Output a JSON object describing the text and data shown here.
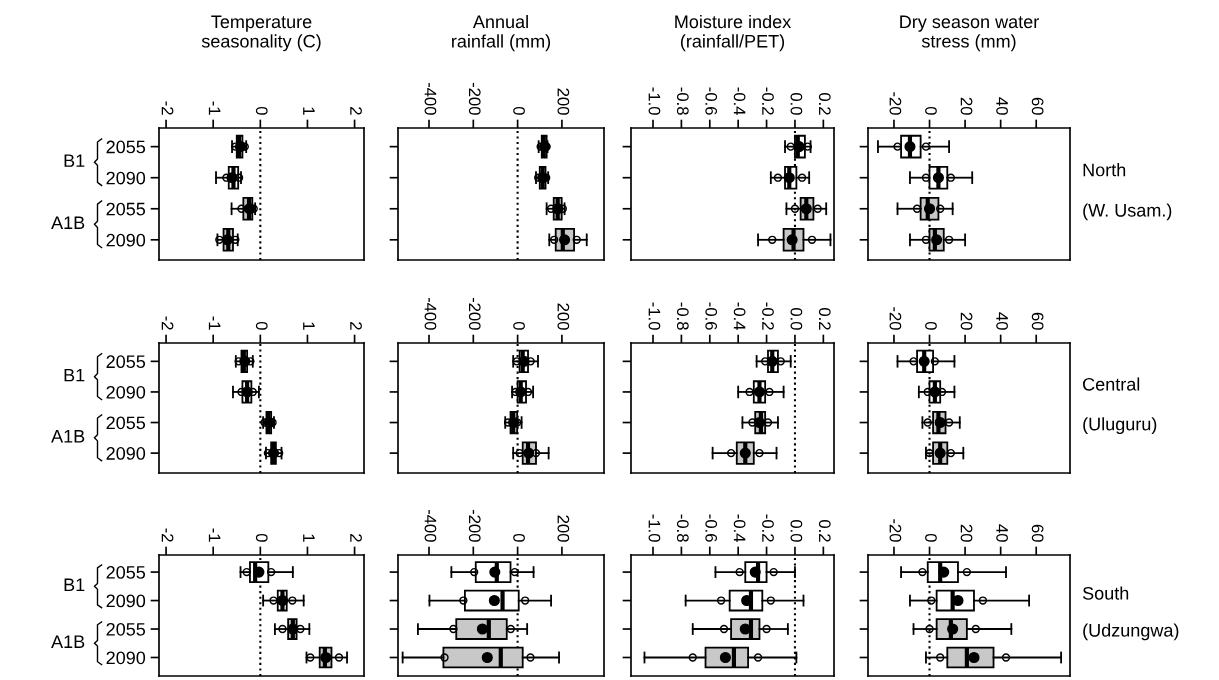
{
  "chart_data": [
    {
      "type": "box",
      "orientation": "horizontal",
      "title": "Temperature\nseasonality (C)",
      "categories": [
        "2055",
        "2090",
        "2055",
        "2090"
      ],
      "xlim": [
        -2.15,
        2.2
      ],
      "xticks": [
        -2,
        -1,
        0,
        1,
        2
      ],
      "colors": [
        "#ffffff",
        "#ffffff",
        "#c8c8c8",
        "#c8c8c8"
      ],
      "ref_lines": [
        {
          "axis": "x",
          "value": 0,
          "line_style": "dotted"
        }
      ],
      "annotations": [
        "B1",
        "A1B"
      ],
      "boxes": [
        {
          "low": -0.6,
          "q1": -0.5,
          "median": -0.45,
          "q3": -0.38,
          "high": -0.3,
          "mean": -0.42,
          "outliers": [
            -0.53,
            -0.33
          ]
        },
        {
          "low": -0.94,
          "q1": -0.67,
          "median": -0.57,
          "q3": -0.47,
          "high": -0.41,
          "mean": -0.6,
          "outliers": [
            -0.72,
            -0.45
          ]
        },
        {
          "low": -0.61,
          "q1": -0.36,
          "median": -0.24,
          "q3": -0.17,
          "high": -0.11,
          "mean": -0.23,
          "outliers": [
            -0.4,
            -0.14
          ]
        },
        {
          "low": -0.91,
          "q1": -0.78,
          "median": -0.68,
          "q3": -0.58,
          "high": -0.48,
          "mean": -0.7,
          "outliers": [
            -0.87,
            -0.53
          ]
        }
      ]
    },
    {
      "type": "box",
      "orientation": "horizontal",
      "title": "Annual\nrainfall (mm)",
      "categories": [
        "2055",
        "2090",
        "2055",
        "2090"
      ],
      "xlim": [
        -540,
        390
      ],
      "xticks": [
        -400,
        -200,
        0,
        200
      ],
      "colors": [
        "#ffffff",
        "#ffffff",
        "#c8c8c8",
        "#c8c8c8"
      ],
      "ref_lines": [
        {
          "axis": "x",
          "value": 0,
          "line_style": "dotted"
        }
      ],
      "tick_labels": "x",
      "boxes": [
        {
          "low": 95,
          "q1": 109,
          "median": 118,
          "q3": 131,
          "high": 135,
          "mean": 122,
          "outliers": [
            104,
            131
          ]
        },
        {
          "low": 83,
          "q1": 100,
          "median": 113,
          "q3": 126,
          "high": 138,
          "mean": 113,
          "outliers": [
            93,
            129
          ]
        },
        {
          "low": 131,
          "q1": 163,
          "median": 181,
          "q3": 199,
          "high": 212,
          "mean": 181,
          "outliers": [
            151,
            204
          ]
        },
        {
          "low": 143,
          "q1": 172,
          "median": 204,
          "q3": 255,
          "high": 312,
          "mean": 212,
          "outliers": [
            165,
            267
          ]
        }
      ]
    },
    {
      "type": "box",
      "orientation": "horizontal",
      "title": "Moisture index\n(rainfall/PET)",
      "categories": [
        "2055",
        "2090",
        "2055",
        "2090"
      ],
      "xlim": [
        -1.155,
        0.275
      ],
      "xticks": [
        {
          "value": -1.0,
          "label": "-1.0"
        },
        {
          "value": -0.8,
          "label": "-0.8"
        },
        {
          "value": -0.6,
          "label": "-0.6"
        },
        {
          "value": -0.4,
          "label": "-0.4"
        },
        {
          "value": -0.2,
          "label": "-0.2"
        },
        {
          "value": 0.0,
          "label": "0.0"
        },
        {
          "value": 0.2,
          "label": "0.2"
        }
      ],
      "colors": [
        "#ffffff",
        "#ffffff",
        "#c8c8c8",
        "#c8c8c8"
      ],
      "ref_lines": [
        {
          "axis": "x",
          "value": 0,
          "line_style": "dotted"
        }
      ],
      "tick_labels": "x",
      "boxes": [
        {
          "low": -0.07,
          "q1": 0.0,
          "median": 0.02,
          "q3": 0.07,
          "high": 0.11,
          "mean": 0.03,
          "outliers": [
            -0.03,
            0.09
          ]
        },
        {
          "low": -0.17,
          "q1": -0.07,
          "median": -0.04,
          "q3": 0.01,
          "high": 0.1,
          "mean": -0.04,
          "outliers": [
            -0.12,
            0.05
          ]
        },
        {
          "low": -0.06,
          "q1": 0.04,
          "median": 0.08,
          "q3": 0.13,
          "high": 0.22,
          "mean": 0.08,
          "outliers": [
            0.0,
            0.16
          ]
        },
        {
          "low": -0.26,
          "q1": -0.08,
          "median": -0.01,
          "q3": 0.06,
          "high": 0.25,
          "mean": -0.02,
          "outliers": [
            -0.16,
            0.12
          ]
        }
      ]
    },
    {
      "type": "box",
      "orientation": "horizontal",
      "title": "Dry season water\nstress (mm)",
      "categories": [
        "2055",
        "2090",
        "2055",
        "2090"
      ],
      "xlim": [
        -34.6,
        79
      ],
      "xticks": [
        -20,
        0,
        20,
        40,
        60
      ],
      "colors": [
        "#ffffff",
        "#ffffff",
        "#c8c8c8",
        "#c8c8c8"
      ],
      "ref_lines": [
        {
          "axis": "x",
          "value": 0,
          "line_style": "dotted"
        }
      ],
      "tick_labels": "x",
      "annotations": [
        "North",
        "(W. Usam.)"
      ],
      "boxes": [
        {
          "low": -29,
          "q1": -16,
          "median": -11,
          "q3": -5,
          "high": 11,
          "mean": -11,
          "outliers": [
            -18,
            -2
          ]
        },
        {
          "low": -11,
          "q1": 0,
          "median": 5,
          "q3": 10,
          "high": 24,
          "mean": 5,
          "outliers": [
            -2,
            12
          ]
        },
        {
          "low": -18,
          "q1": -5,
          "median": -1,
          "q3": 5,
          "high": 13,
          "mean": 0,
          "outliers": [
            -7,
            6
          ]
        },
        {
          "low": -11,
          "q1": 0,
          "median": 3,
          "q3": 8,
          "high": 20,
          "mean": 4,
          "outliers": [
            -2,
            11
          ]
        }
      ]
    },
    {
      "type": "box",
      "orientation": "horizontal",
      "categories": [
        "2055",
        "2090",
        "2055",
        "2090"
      ],
      "xlim": [
        -2.15,
        2.2
      ],
      "xticks": [
        -2,
        -1,
        0,
        1,
        2
      ],
      "colors": [
        "#ffffff",
        "#ffffff",
        "#c8c8c8",
        "#c8c8c8"
      ],
      "ref_lines": [
        {
          "axis": "x",
          "value": 0,
          "line_style": "dotted"
        }
      ],
      "annotations": [
        "B1",
        "A1B"
      ],
      "boxes": [
        {
          "low": -0.52,
          "q1": -0.4,
          "median": -0.35,
          "q3": -0.28,
          "high": -0.16,
          "mean": -0.33,
          "outliers": [
            -0.46,
            -0.21
          ]
        },
        {
          "low": -0.58,
          "q1": -0.38,
          "median": -0.28,
          "q3": -0.19,
          "high": -0.03,
          "mean": -0.28,
          "outliers": [
            -0.4,
            -0.16
          ]
        },
        {
          "low": 0.06,
          "q1": 0.13,
          "median": 0.17,
          "q3": 0.23,
          "high": 0.29,
          "mean": 0.19,
          "outliers": [
            0.09,
            0.26
          ]
        },
        {
          "low": 0.12,
          "q1": 0.23,
          "median": 0.28,
          "q3": 0.33,
          "high": 0.45,
          "mean": 0.28,
          "outliers": [
            0.16,
            0.4
          ]
        }
      ]
    },
    {
      "type": "box",
      "orientation": "horizontal",
      "categories": [
        "2055",
        "2090",
        "2055",
        "2090"
      ],
      "xlim": [
        -540,
        390
      ],
      "xticks": [
        -400,
        -200,
        0,
        200
      ],
      "colors": [
        "#ffffff",
        "#ffffff",
        "#c8c8c8",
        "#c8c8c8"
      ],
      "ref_lines": [
        {
          "axis": "x",
          "value": 0,
          "line_style": "dotted"
        }
      ],
      "tick_labels": "x",
      "boxes": [
        {
          "low": -20,
          "q1": 9,
          "median": 23,
          "q3": 47,
          "high": 92,
          "mean": 29,
          "outliers": [
            -4,
            59
          ]
        },
        {
          "low": -25,
          "q1": 0,
          "median": 14,
          "q3": 38,
          "high": 70,
          "mean": 14,
          "outliers": [
            -9,
            47
          ]
        },
        {
          "low": -56,
          "q1": -32,
          "median": -20,
          "q3": -2,
          "high": 18,
          "mean": -18,
          "outliers": [
            -43,
            -2
          ]
        },
        {
          "low": -20,
          "q1": 23,
          "median": 47,
          "q3": 83,
          "high": 140,
          "mean": 50,
          "outliers": [
            9,
            83
          ]
        }
      ]
    },
    {
      "type": "box",
      "orientation": "horizontal",
      "categories": [
        "2055",
        "2090",
        "2055",
        "2090"
      ],
      "xlim": [
        -1.155,
        0.275
      ],
      "xticks": [
        {
          "value": -1.0,
          "label": "-1.0"
        },
        {
          "value": -0.8,
          "label": "-0.8"
        },
        {
          "value": -0.6,
          "label": "-0.6"
        },
        {
          "value": -0.4,
          "label": "-0.4"
        },
        {
          "value": -0.2,
          "label": "-0.2"
        },
        {
          "value": 0.0,
          "label": "0.0"
        },
        {
          "value": 0.2,
          "label": "0.2"
        }
      ],
      "colors": [
        "#ffffff",
        "#ffffff",
        "#c8c8c8",
        "#c8c8c8"
      ],
      "ref_lines": [
        {
          "axis": "x",
          "value": 0,
          "line_style": "dotted"
        }
      ],
      "tick_labels": "x",
      "boxes": [
        {
          "low": -0.27,
          "q1": -0.19,
          "median": -0.16,
          "q3": -0.12,
          "high": -0.03,
          "mean": -0.16,
          "outliers": [
            -0.21,
            -0.1
          ]
        },
        {
          "low": -0.4,
          "q1": -0.29,
          "median": -0.25,
          "q3": -0.21,
          "high": -0.08,
          "mean": -0.25,
          "outliers": [
            -0.32,
            -0.18
          ]
        },
        {
          "low": -0.37,
          "q1": -0.28,
          "median": -0.24,
          "q3": -0.21,
          "high": -0.12,
          "mean": -0.25,
          "outliers": [
            -0.3,
            -0.19
          ]
        },
        {
          "low": -0.58,
          "q1": -0.41,
          "median": -0.35,
          "q3": -0.29,
          "high": -0.13,
          "mean": -0.35,
          "outliers": [
            -0.45,
            -0.25
          ]
        }
      ]
    },
    {
      "type": "box",
      "orientation": "horizontal",
      "categories": [
        "2055",
        "2090",
        "2055",
        "2090"
      ],
      "xlim": [
        -34.6,
        79
      ],
      "xticks": [
        -20,
        0,
        20,
        40,
        60
      ],
      "colors": [
        "#ffffff",
        "#ffffff",
        "#c8c8c8",
        "#c8c8c8"
      ],
      "ref_lines": [
        {
          "axis": "x",
          "value": 0,
          "line_style": "dotted"
        }
      ],
      "tick_labels": "x",
      "annotations": [
        "Central",
        "(Uluguru)"
      ],
      "boxes": [
        {
          "low": -18,
          "q1": -7,
          "median": -3,
          "q3": 2,
          "high": 14,
          "mean": -3,
          "outliers": [
            -9,
            3
          ]
        },
        {
          "low": -6,
          "q1": 0,
          "median": 3,
          "q3": 6,
          "high": 14,
          "mean": 3,
          "outliers": [
            -1,
            7
          ]
        },
        {
          "low": -4,
          "q1": 2,
          "median": 5,
          "q3": 9,
          "high": 17,
          "mean": 6,
          "outliers": [
            -1,
            11
          ]
        },
        {
          "low": -2,
          "q1": 2,
          "median": 6,
          "q3": 10,
          "high": 19,
          "mean": 6,
          "outliers": [
            0,
            12
          ]
        }
      ]
    },
    {
      "type": "box",
      "orientation": "horizontal",
      "categories": [
        "2055",
        "2090",
        "2055",
        "2090"
      ],
      "xlim": [
        -2.15,
        2.2
      ],
      "xticks": [
        -2,
        -1,
        0,
        1,
        2
      ],
      "colors": [
        "#ffffff",
        "#ffffff",
        "#c8c8c8",
        "#c8c8c8"
      ],
      "ref_lines": [
        {
          "axis": "x",
          "value": 0,
          "line_style": "dotted"
        }
      ],
      "annotations": [
        "B1",
        "A1B"
      ],
      "boxes": [
        {
          "low": -0.42,
          "q1": -0.22,
          "median": -0.11,
          "q3": 0.17,
          "high": 0.69,
          "mean": -0.03,
          "outliers": [
            -0.29,
            0.23
          ]
        },
        {
          "low": 0.06,
          "q1": 0.37,
          "median": 0.47,
          "q3": 0.56,
          "high": 0.92,
          "mean": 0.47,
          "outliers": [
            0.28,
            0.68
          ]
        },
        {
          "low": 0.31,
          "q1": 0.59,
          "median": 0.69,
          "q3": 0.77,
          "high": 1.04,
          "mean": 0.69,
          "outliers": [
            0.47,
            0.85
          ]
        },
        {
          "low": 0.98,
          "q1": 1.26,
          "median": 1.37,
          "q3": 1.51,
          "high": 1.84,
          "mean": 1.39,
          "outliers": [
            1.06,
            1.67
          ]
        }
      ]
    },
    {
      "type": "box",
      "orientation": "horizontal",
      "categories": [
        "2055",
        "2090",
        "2055",
        "2090"
      ],
      "xlim": [
        -540,
        390
      ],
      "xticks": [
        -400,
        -200,
        0,
        200
      ],
      "colors": [
        "#ffffff",
        "#ffffff",
        "#c8c8c8",
        "#c8c8c8"
      ],
      "ref_lines": [
        {
          "axis": "x",
          "value": 0,
          "line_style": "dotted"
        }
      ],
      "tick_labels": "x",
      "boxes": [
        {
          "low": -299,
          "q1": -189,
          "median": -94,
          "q3": -32,
          "high": 72,
          "mean": -103,
          "outliers": [
            -196,
            -13
          ]
        },
        {
          "low": -398,
          "q1": -238,
          "median": -68,
          "q3": 5,
          "high": 151,
          "mean": -105,
          "outliers": [
            -245,
            34
          ]
        },
        {
          "low": -450,
          "q1": -277,
          "median": -130,
          "q3": -49,
          "high": 43,
          "mean": -159,
          "outliers": [
            -290,
            -31
          ]
        },
        {
          "low": -519,
          "q1": -335,
          "median": -76,
          "q3": 23,
          "high": 187,
          "mean": -137,
          "outliers": [
            -330,
            58
          ]
        }
      ]
    },
    {
      "type": "box",
      "orientation": "horizontal",
      "categories": [
        "2055",
        "2090",
        "2055",
        "2090"
      ],
      "xlim": [
        -1.155,
        0.275
      ],
      "xticks": [
        {
          "value": -1.0,
          "label": "-1.0"
        },
        {
          "value": -0.8,
          "label": "-0.8"
        },
        {
          "value": -0.6,
          "label": "-0.6"
        },
        {
          "value": -0.4,
          "label": "-0.4"
        },
        {
          "value": -0.2,
          "label": "-0.2"
        },
        {
          "value": 0.0,
          "label": "0.0"
        },
        {
          "value": 0.2,
          "label": "0.2"
        }
      ],
      "colors": [
        "#ffffff",
        "#ffffff",
        "#c8c8c8",
        "#c8c8c8"
      ],
      "ref_lines": [
        {
          "axis": "x",
          "value": 0,
          "line_style": "dotted"
        }
      ],
      "tick_labels": "x",
      "boxes": [
        {
          "low": -0.56,
          "q1": -0.35,
          "median": -0.26,
          "q3": -0.2,
          "high": 0.0,
          "mean": -0.28,
          "outliers": [
            -0.39,
            -0.15
          ]
        },
        {
          "low": -0.77,
          "q1": -0.46,
          "median": -0.31,
          "q3": -0.23,
          "high": 0.06,
          "mean": -0.34,
          "outliers": [
            -0.52,
            -0.17
          ]
        },
        {
          "low": -0.72,
          "q1": -0.45,
          "median": -0.31,
          "q3": -0.25,
          "high": -0.05,
          "mean": -0.35,
          "outliers": [
            -0.5,
            -0.2
          ]
        },
        {
          "low": -1.06,
          "q1": -0.63,
          "median": -0.43,
          "q3": -0.33,
          "high": 0.01,
          "mean": -0.49,
          "outliers": [
            -0.72,
            -0.26
          ]
        }
      ]
    },
    {
      "type": "box",
      "orientation": "horizontal",
      "categories": [
        "2055",
        "2090",
        "2055",
        "2090"
      ],
      "xlim": [
        -34.6,
        79
      ],
      "xticks": [
        -20,
        0,
        20,
        40,
        60
      ],
      "colors": [
        "#ffffff",
        "#ffffff",
        "#c8c8c8",
        "#c8c8c8"
      ],
      "ref_lines": [
        {
          "axis": "x",
          "value": 0,
          "line_style": "dotted"
        }
      ],
      "tick_labels": "x",
      "annotations": [
        "South",
        "(Udzungwa)"
      ],
      "boxes": [
        {
          "low": -16,
          "q1": -1,
          "median": 6,
          "q3": 16,
          "high": 43,
          "mean": 8,
          "outliers": [
            -4,
            21
          ]
        },
        {
          "low": -11,
          "q1": 4,
          "median": 13,
          "q3": 25,
          "high": 56,
          "mean": 16,
          "outliers": [
            1,
            30
          ]
        },
        {
          "low": -9,
          "q1": 4,
          "median": 12,
          "q3": 21,
          "high": 46,
          "mean": 13,
          "outliers": [
            0,
            26
          ]
        },
        {
          "low": -2,
          "q1": 10,
          "median": 21,
          "q3": 36,
          "high": 74,
          "mean": 25,
          "outliers": [
            6,
            43
          ]
        }
      ]
    }
  ]
}
